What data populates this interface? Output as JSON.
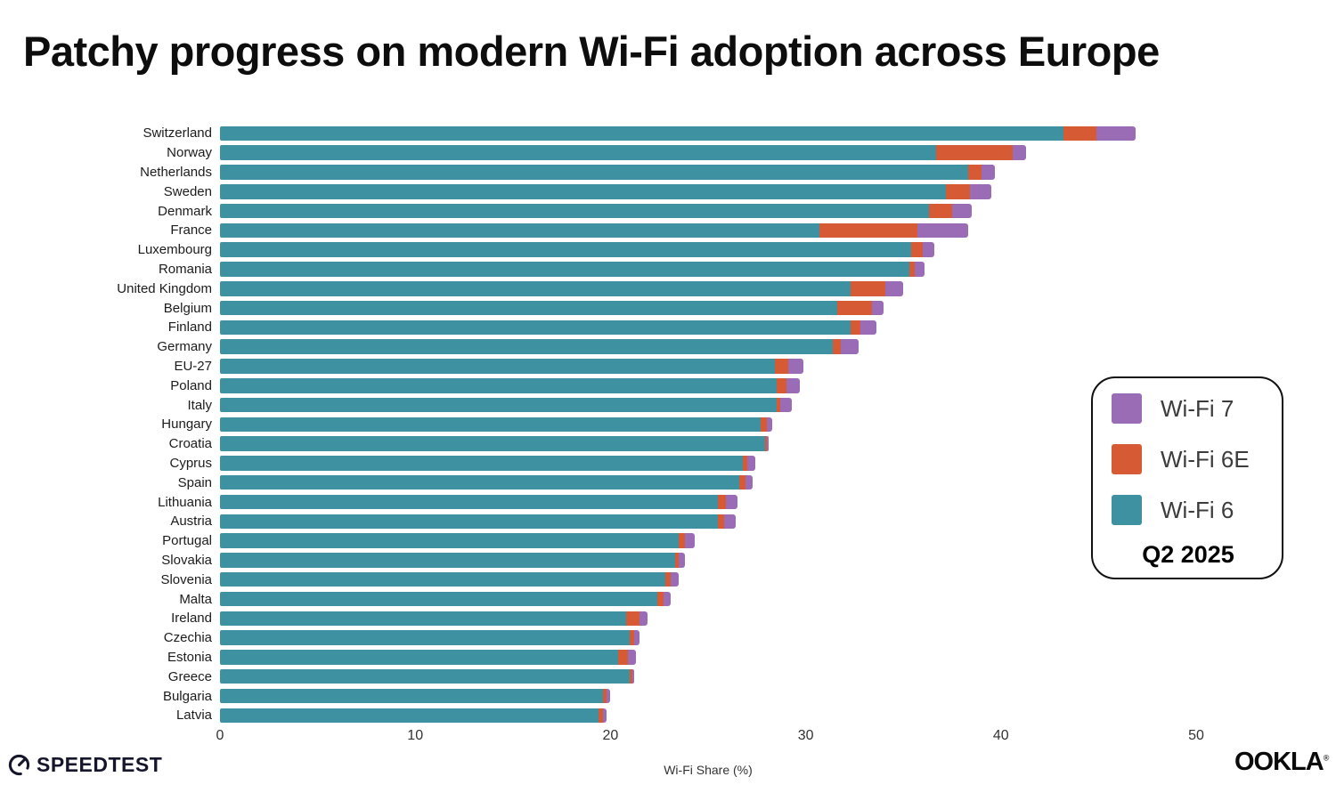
{
  "title": {
    "prefix": "Patchy progress on ",
    "bold": "modern Wi-Fi",
    "suffix": " adoption across Europe"
  },
  "chart_data": {
    "type": "bar",
    "orientation": "horizontal",
    "stacked": true,
    "title": "Patchy progress on modern Wi-Fi adoption across Europe",
    "xlabel": "Wi-Fi Share (%)",
    "ylabel": "",
    "xlim": [
      0,
      55.5
    ],
    "xticks": [
      0,
      10,
      20,
      30,
      40,
      50
    ],
    "grid": false,
    "legend_position": "right",
    "period": "Q2 2025",
    "categories": [
      "Switzerland",
      "Norway",
      "Netherlands",
      "Sweden",
      "Denmark",
      "France",
      "Luxembourg",
      "Romania",
      "United Kingdom",
      "Belgium",
      "Finland",
      "Germany",
      "EU-27",
      "Poland",
      "Italy",
      "Hungary",
      "Croatia",
      "Cyprus",
      "Spain",
      "Lithuania",
      "Austria",
      "Portugal",
      "Slovakia",
      "Slovenia",
      "Malta",
      "Ireland",
      "Czechia",
      "Estonia",
      "Greece",
      "Bulgaria",
      "Latvia"
    ],
    "series": [
      {
        "name": "Wi-Fi 6",
        "color": "#3e91a1",
        "values": [
          43.2,
          36.7,
          38.3,
          37.2,
          36.3,
          30.7,
          35.4,
          35.3,
          32.3,
          31.6,
          32.3,
          31.4,
          28.4,
          28.5,
          28.5,
          27.7,
          27.9,
          26.8,
          26.6,
          25.5,
          25.5,
          23.5,
          23.3,
          22.8,
          22.4,
          20.8,
          21.0,
          20.4,
          21.0,
          19.6,
          19.4
        ]
      },
      {
        "name": "Wi-Fi 6E",
        "color": "#d65a33",
        "values": [
          1.7,
          3.9,
          0.7,
          1.2,
          1.2,
          5.0,
          0.6,
          0.3,
          1.8,
          1.8,
          0.5,
          0.4,
          0.7,
          0.5,
          0.2,
          0.3,
          0.1,
          0.2,
          0.3,
          0.4,
          0.3,
          0.3,
          0.2,
          0.3,
          0.3,
          0.7,
          0.2,
          0.5,
          0.1,
          0.2,
          0.2
        ]
      },
      {
        "name": "Wi-Fi 7",
        "color": "#9a6cb6",
        "values": [
          2.0,
          0.7,
          0.7,
          1.1,
          1.0,
          2.6,
          0.6,
          0.5,
          0.9,
          0.6,
          0.8,
          0.9,
          0.8,
          0.7,
          0.6,
          0.3,
          0.1,
          0.4,
          0.4,
          0.6,
          0.6,
          0.5,
          0.3,
          0.4,
          0.4,
          0.4,
          0.3,
          0.4,
          0.1,
          0.2,
          0.2
        ]
      }
    ]
  },
  "legend": {
    "items": [
      {
        "label": "Wi-Fi 7",
        "color": "#9a6cb6"
      },
      {
        "label": "Wi-Fi 6E",
        "color": "#d65a33"
      },
      {
        "label": "Wi-Fi 6",
        "color": "#3e91a1"
      }
    ],
    "period": "Q2 2025"
  },
  "axis": {
    "xlabel": "Wi-Fi Share (%)"
  },
  "footer": {
    "speedtest_label": "SPEEDTEST",
    "ookla_label": "OOKLA",
    "ookla_mark": "®"
  }
}
